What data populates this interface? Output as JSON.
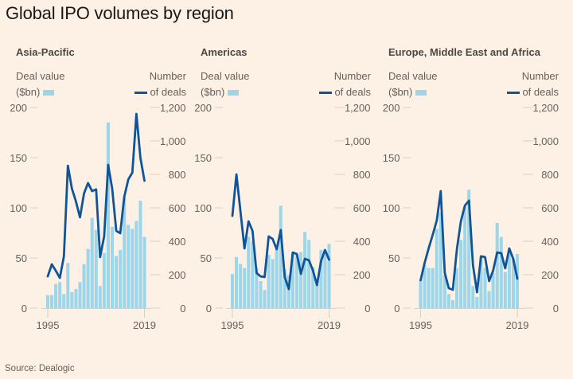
{
  "title": "Global IPO volumes by region",
  "source": "Source: Dealogic",
  "legend": {
    "bar_line1": "Deal value",
    "bar_line2": "($bn)",
    "line_line1": "Number",
    "line_line2": "of deals"
  },
  "colors": {
    "background": "#fdf1e6",
    "bar": "#9dd5e9",
    "line": "#0f5499",
    "grid": "#d9cfc6",
    "text": "#66605c"
  },
  "chart_data": [
    {
      "type": "bar+line",
      "title": "Asia-Pacific",
      "x": [
        1995,
        1996,
        1997,
        1998,
        1999,
        2000,
        2001,
        2002,
        2003,
        2004,
        2005,
        2006,
        2007,
        2008,
        2009,
        2010,
        2011,
        2012,
        2013,
        2014,
        2015,
        2016,
        2017,
        2018,
        2019
      ],
      "x_tick_labels": [
        "1995",
        "2019"
      ],
      "left_axis": {
        "label": "Deal value ($bn)",
        "ylim": [
          0,
          200
        ],
        "ticks": [
          "0",
          "50",
          "100",
          "150",
          "200"
        ]
      },
      "right_axis": {
        "label": "Number of deals",
        "ylim": [
          0,
          1200
        ],
        "ticks": [
          "0",
          "200",
          "400",
          "600",
          "800",
          "1,000",
          "1,200"
        ]
      },
      "series": [
        {
          "name": "Deal value ($bn)",
          "type": "bar",
          "values": [
            13,
            13,
            24,
            26,
            14,
            45,
            16,
            19,
            26,
            44,
            59,
            90,
            78,
            22,
            55,
            185,
            81,
            52,
            58,
            110,
            83,
            79,
            87,
            107,
            71
          ]
        },
        {
          "name": "Number of deals",
          "type": "line",
          "values": [
            190,
            262,
            224,
            181,
            310,
            852,
            714,
            638,
            543,
            686,
            748,
            700,
            710,
            305,
            430,
            857,
            714,
            462,
            448,
            667,
            771,
            810,
            1162,
            900,
            762
          ]
        }
      ]
    },
    {
      "type": "bar+line",
      "title": "Americas",
      "x": [
        1995,
        1996,
        1997,
        1998,
        1999,
        2000,
        2001,
        2002,
        2003,
        2004,
        2005,
        2006,
        2007,
        2008,
        2009,
        2010,
        2011,
        2012,
        2013,
        2014,
        2015,
        2016,
        2017,
        2018,
        2019
      ],
      "x_tick_labels": [
        "1995",
        "2019"
      ],
      "left_axis": {
        "label": "Deal value ($bn)",
        "ylim": [
          0,
          200
        ],
        "ticks": [
          "0",
          "50",
          "100",
          "150",
          "200"
        ]
      },
      "right_axis": {
        "label": "Number of deals",
        "ylim": [
          0,
          1200
        ],
        "ticks": [
          "0",
          "200",
          "400",
          "600",
          "800",
          "1,000",
          "1,200"
        ]
      },
      "series": [
        {
          "name": "Deal value ($bn)",
          "type": "bar",
          "values": [
            34,
            51,
            44,
            40,
            71,
            67,
            40,
            27,
            18,
            53,
            49,
            61,
            102,
            39,
            33,
            55,
            54,
            56,
            76,
            68,
            41,
            29,
            58,
            57,
            64
          ]
        },
        {
          "name": "Number of deals",
          "type": "line",
          "values": [
            552,
            800,
            581,
            357,
            519,
            462,
            210,
            190,
            186,
            429,
            414,
            352,
            467,
            186,
            114,
            333,
            324,
            205,
            295,
            286,
            224,
            138,
            281,
            348,
            290
          ]
        }
      ]
    },
    {
      "type": "bar+line",
      "title": "Europe, Middle East and Africa",
      "x": [
        1995,
        1996,
        1997,
        1998,
        1999,
        2000,
        2001,
        2002,
        2003,
        2004,
        2005,
        2006,
        2007,
        2008,
        2009,
        2010,
        2011,
        2012,
        2013,
        2014,
        2015,
        2016,
        2017,
        2018,
        2019
      ],
      "x_tick_labels": [
        "1995",
        "2019"
      ],
      "left_axis": {
        "label": "Deal value ($bn)",
        "ylim": [
          0,
          200
        ],
        "ticks": [
          "0",
          "50",
          "100",
          "150",
          "200"
        ]
      },
      "right_axis": {
        "label": "Number of deals",
        "ylim": [
          0,
          1200
        ],
        "ticks": [
          "0",
          "200",
          "400",
          "600",
          "800",
          "1,000",
          "1,200"
        ]
      },
      "series": [
        {
          "name": "Deal value ($bn)",
          "type": "bar",
          "values": [
            28,
            43,
            40,
            40,
            79,
            95,
            33,
            14,
            8,
            40,
            68,
            101,
            118,
            22,
            11,
            52,
            40,
            17,
            35,
            85,
            71,
            36,
            55,
            49,
            54
          ]
        },
        {
          "name": "Number of deals",
          "type": "line",
          "values": [
            167,
            271,
            357,
            438,
            524,
            700,
            210,
            119,
            110,
            352,
            519,
            614,
            643,
            257,
            95,
            310,
            305,
            162,
            224,
            333,
            329,
            238,
            357,
            295,
            176
          ]
        }
      ]
    }
  ]
}
